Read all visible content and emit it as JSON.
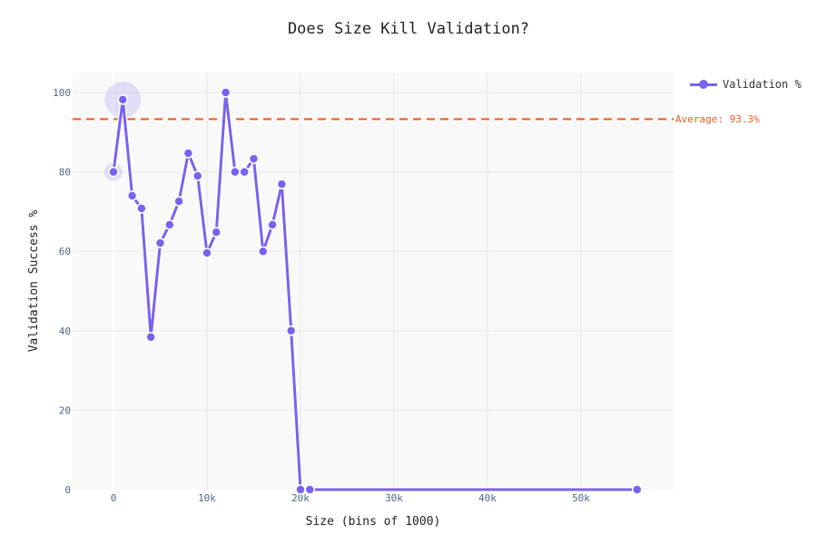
{
  "chart_data": {
    "type": "line",
    "title": "Does Size Kill Validation?",
    "xlabel": "Size (bins of 1000)",
    "ylabel": "Validation Success %",
    "x": [
      0,
      1000,
      2000,
      3000,
      4000,
      5000,
      6000,
      7000,
      8000,
      9000,
      10000,
      11000,
      12000,
      13000,
      14000,
      15000,
      16000,
      17000,
      18000,
      19000,
      20000,
      21000,
      56000
    ],
    "series": [
      {
        "name": "Validation %",
        "color": "#7b61f0",
        "values": [
          80,
          98.2,
          74,
          70.8,
          38.4,
          62.1,
          66.7,
          72.6,
          84.7,
          79,
          59.6,
          64.8,
          100,
          80,
          80,
          83.3,
          60,
          66.7,
          76.9,
          40,
          0,
          0,
          0
        ]
      }
    ],
    "reference_line": {
      "label": "Average: 93.3%",
      "value": 93.3,
      "color": "#f05a1a",
      "style": "dashed"
    },
    "highlighted_points": [
      {
        "x": 0,
        "y": 80,
        "size": "small"
      },
      {
        "x": 1000,
        "y": 98.2,
        "size": "large"
      }
    ],
    "xlim": [
      -4300,
      59800
    ],
    "ylim": [
      0,
      105
    ],
    "x_ticks": [
      0,
      10000,
      20000,
      30000,
      40000,
      50000
    ],
    "x_tick_labels": [
      "0",
      "10k",
      "20k",
      "30k",
      "40k",
      "50k"
    ],
    "y_ticks": [
      0,
      20,
      40,
      60,
      80,
      100
    ],
    "y_tick_labels": [
      "0",
      "20",
      "40",
      "60",
      "80",
      "100"
    ],
    "grid": true,
    "legend_position": "top-right outside"
  },
  "legend": {
    "label": "Validation %"
  },
  "avg_label": "Average: 93.3%"
}
